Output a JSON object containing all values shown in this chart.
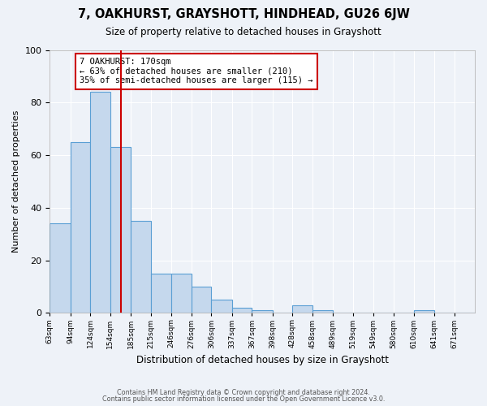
{
  "title": "7, OAKHURST, GRAYSHOTT, HINDHEAD, GU26 6JW",
  "subtitle": "Size of property relative to detached houses in Grayshott",
  "xlabel": "Distribution of detached houses by size in Grayshott",
  "ylabel": "Number of detached properties",
  "bar_color": "#c5d8ed",
  "bar_edge_color": "#5a9fd4",
  "background_color": "#eef2f8",
  "grid_color": "#ffffff",
  "annotation_box_color": "#cc0000",
  "vline_color": "#cc0000",
  "vline_x": 170,
  "annotation_title": "7 OAKHURST: 170sqm",
  "annotation_line1": "← 63% of detached houses are smaller (210)",
  "annotation_line2": "35% of semi-detached houses are larger (115) →",
  "bin_edges": [
    63,
    94,
    124,
    154,
    185,
    215,
    246,
    276,
    306,
    337,
    367,
    398,
    428,
    458,
    489,
    519,
    549,
    580,
    610,
    641,
    671,
    702
  ],
  "bin_labels": [
    "63sqm",
    "94sqm",
    "124sqm",
    "154sqm",
    "185sqm",
    "215sqm",
    "246sqm",
    "276sqm",
    "306sqm",
    "337sqm",
    "367sqm",
    "398sqm",
    "428sqm",
    "458sqm",
    "489sqm",
    "519sqm",
    "549sqm",
    "580sqm",
    "610sqm",
    "641sqm",
    "671sqm"
  ],
  "counts": [
    34,
    65,
    84,
    63,
    35,
    15,
    15,
    10,
    5,
    2,
    1,
    0,
    3,
    1,
    0,
    0,
    0,
    0,
    1,
    0,
    0
  ],
  "ylim": [
    0,
    100
  ],
  "yticks": [
    0,
    20,
    40,
    60,
    80,
    100
  ],
  "footer_line1": "Contains HM Land Registry data © Crown copyright and database right 2024.",
  "footer_line2": "Contains public sector information licensed under the Open Government Licence v3.0."
}
